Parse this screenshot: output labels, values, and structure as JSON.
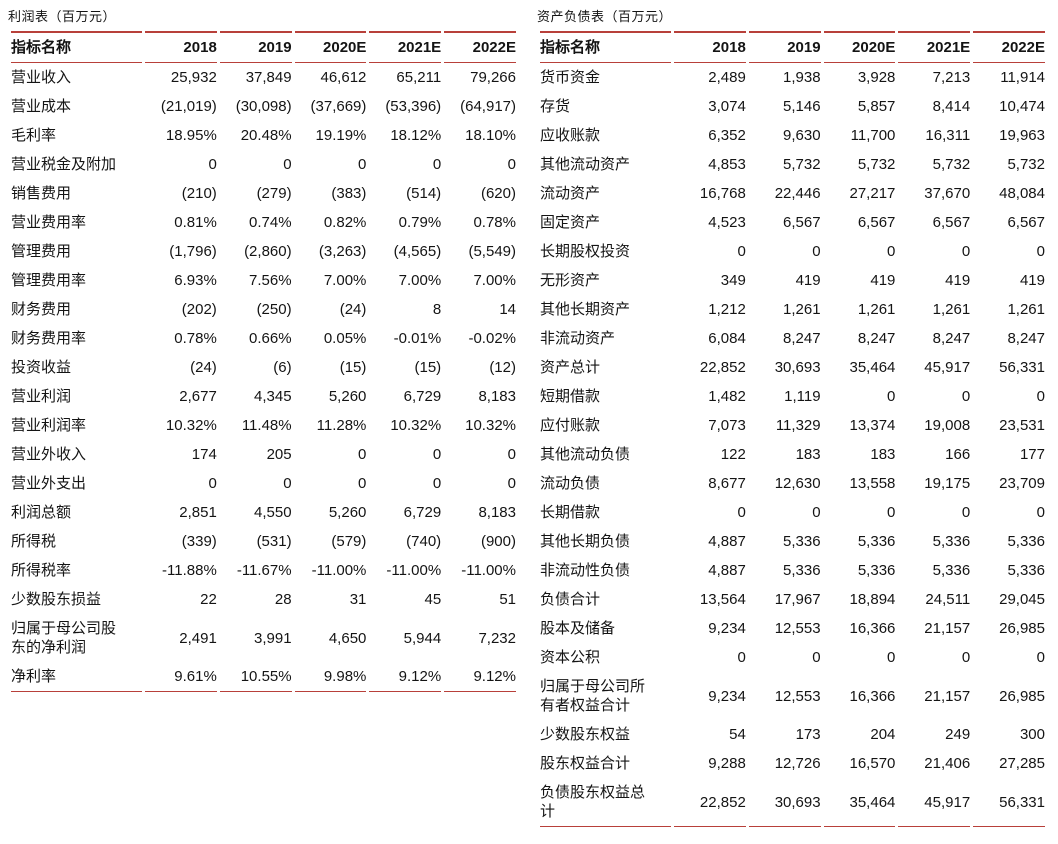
{
  "page": {
    "background_color": "#ffffff",
    "accent_line_color": "#b8403a",
    "text_color": "#141414"
  },
  "income_statement": {
    "title": "利润表（百万元）",
    "columns": [
      "指标名称",
      "2018",
      "2019",
      "2020E",
      "2021E",
      "2022E"
    ],
    "rows": [
      [
        "营业收入",
        "25,932",
        "37,849",
        "46,612",
        "65,211",
        "79,266"
      ],
      [
        "营业成本",
        "(21,019)",
        "(30,098)",
        "(37,669)",
        "(53,396)",
        "(64,917)"
      ],
      [
        "毛利率",
        "18.95%",
        "20.48%",
        "19.19%",
        "18.12%",
        "18.10%"
      ],
      [
        "营业税金及附加",
        "0",
        "0",
        "0",
        "0",
        "0"
      ],
      [
        "销售费用",
        "(210)",
        "(279)",
        "(383)",
        "(514)",
        "(620)"
      ],
      [
        "营业费用率",
        "0.81%",
        "0.74%",
        "0.82%",
        "0.79%",
        "0.78%"
      ],
      [
        "管理费用",
        "(1,796)",
        "(2,860)",
        "(3,263)",
        "(4,565)",
        "(5,549)"
      ],
      [
        "管理费用率",
        "6.93%",
        "7.56%",
        "7.00%",
        "7.00%",
        "7.00%"
      ],
      [
        "财务费用",
        "(202)",
        "(250)",
        "(24)",
        "8",
        "14"
      ],
      [
        "财务费用率",
        "0.78%",
        "0.66%",
        "0.05%",
        "-0.01%",
        "-0.02%"
      ],
      [
        "投资收益",
        "(24)",
        "(6)",
        "(15)",
        "(15)",
        "(12)"
      ],
      [
        "营业利润",
        "2,677",
        "4,345",
        "5,260",
        "6,729",
        "8,183"
      ],
      [
        "营业利润率",
        "10.32%",
        "11.48%",
        "11.28%",
        "10.32%",
        "10.32%"
      ],
      [
        "营业外收入",
        "174",
        "205",
        "0",
        "0",
        "0"
      ],
      [
        "营业外支出",
        "0",
        "0",
        "0",
        "0",
        "0"
      ],
      [
        "利润总额",
        "2,851",
        "4,550",
        "5,260",
        "6,729",
        "8,183"
      ],
      [
        "所得税",
        "(339)",
        "(531)",
        "(579)",
        "(740)",
        "(900)"
      ],
      [
        "所得税率",
        "-11.88%",
        "-11.67%",
        "-11.00%",
        "-11.00%",
        "-11.00%"
      ],
      [
        "少数股东损益",
        "22",
        "28",
        "31",
        "45",
        "51"
      ],
      [
        "归属于母公司股\n东的净利润",
        "2,491",
        "3,991",
        "4,650",
        "5,944",
        "7,232"
      ],
      [
        "净利率",
        "9.61%",
        "10.55%",
        "9.98%",
        "9.12%",
        "9.12%"
      ]
    ]
  },
  "balance_sheet": {
    "title": "资产负债表（百万元）",
    "columns": [
      "指标名称",
      "2018",
      "2019",
      "2020E",
      "2021E",
      "2022E"
    ],
    "rows": [
      [
        "货币资金",
        "2,489",
        "1,938",
        "3,928",
        "7,213",
        "11,914"
      ],
      [
        "存货",
        "3,074",
        "5,146",
        "5,857",
        "8,414",
        "10,474"
      ],
      [
        "应收账款",
        "6,352",
        "9,630",
        "11,700",
        "16,311",
        "19,963"
      ],
      [
        "其他流动资产",
        "4,853",
        "5,732",
        "5,732",
        "5,732",
        "5,732"
      ],
      [
        "流动资产",
        "16,768",
        "22,446",
        "27,217",
        "37,670",
        "48,084"
      ],
      [
        "固定资产",
        "4,523",
        "6,567",
        "6,567",
        "6,567",
        "6,567"
      ],
      [
        "长期股权投资",
        "0",
        "0",
        "0",
        "0",
        "0"
      ],
      [
        "无形资产",
        "349",
        "419",
        "419",
        "419",
        "419"
      ],
      [
        "其他长期资产",
        "1,212",
        "1,261",
        "1,261",
        "1,261",
        "1,261"
      ],
      [
        "非流动资产",
        "6,084",
        "8,247",
        "8,247",
        "8,247",
        "8,247"
      ],
      [
        "资产总计",
        "22,852",
        "30,693",
        "35,464",
        "45,917",
        "56,331"
      ],
      [
        "短期借款",
        "1,482",
        "1,119",
        "0",
        "0",
        "0"
      ],
      [
        "应付账款",
        "7,073",
        "11,329",
        "13,374",
        "19,008",
        "23,531"
      ],
      [
        "其他流动负债",
        "122",
        "183",
        "183",
        "166",
        "177"
      ],
      [
        "流动负债",
        "8,677",
        "12,630",
        "13,558",
        "19,175",
        "23,709"
      ],
      [
        "长期借款",
        "0",
        "0",
        "0",
        "0",
        "0"
      ],
      [
        "其他长期负债",
        "4,887",
        "5,336",
        "5,336",
        "5,336",
        "5,336"
      ],
      [
        "非流动性负债",
        "4,887",
        "5,336",
        "5,336",
        "5,336",
        "5,336"
      ],
      [
        "负债合计",
        "13,564",
        "17,967",
        "18,894",
        "24,511",
        "29,045"
      ],
      [
        "股本及储备",
        "9,234",
        "12,553",
        "16,366",
        "21,157",
        "26,985"
      ],
      [
        "资本公积",
        "0",
        "0",
        "0",
        "0",
        "0"
      ],
      [
        "归属于母公司所\n有者权益合计",
        "9,234",
        "12,553",
        "16,366",
        "21,157",
        "26,985"
      ],
      [
        "少数股东权益",
        "54",
        "173",
        "204",
        "249",
        "300"
      ],
      [
        "股东权益合计",
        "9,288",
        "12,726",
        "16,570",
        "21,406",
        "27,285"
      ],
      [
        "负债股东权益总\n计",
        "22,852",
        "30,693",
        "35,464",
        "45,917",
        "56,331"
      ]
    ]
  }
}
